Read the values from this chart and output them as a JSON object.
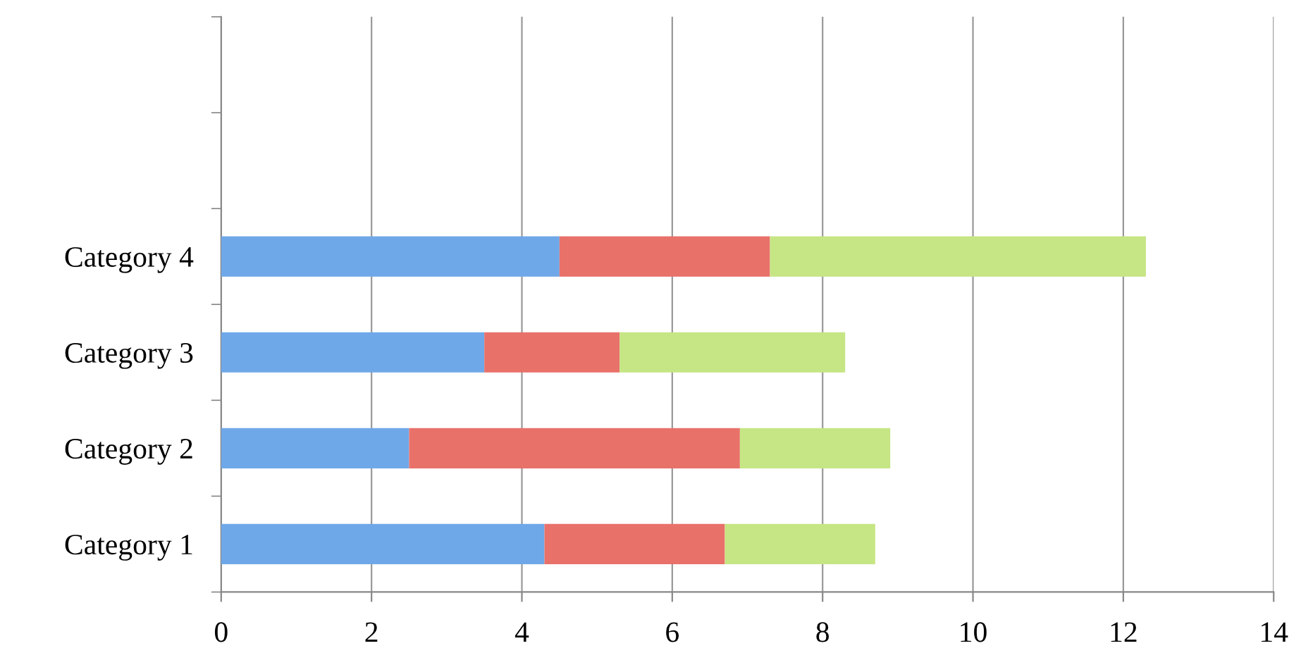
{
  "chart_data": {
    "type": "bar",
    "orientation": "horizontal",
    "stacked": true,
    "categories": [
      null,
      null,
      "Category 4",
      "Category 3",
      "Category 2",
      "Category 1"
    ],
    "series": [
      {
        "color": "#6fa8e8",
        "values": [
          null,
          null,
          4.5,
          3.5,
          2.5,
          4.3
        ]
      },
      {
        "color": "#e8716a",
        "values": [
          null,
          null,
          2.8,
          1.8,
          4.4,
          2.4
        ]
      },
      {
        "color": "#c6e584",
        "values": [
          null,
          null,
          5.0,
          3.0,
          2.0,
          2.0
        ]
      }
    ],
    "xlim": [
      0,
      14
    ],
    "xticks": [
      0,
      2,
      4,
      6,
      8,
      10,
      12,
      14
    ],
    "grid": "x",
    "legend": false
  }
}
